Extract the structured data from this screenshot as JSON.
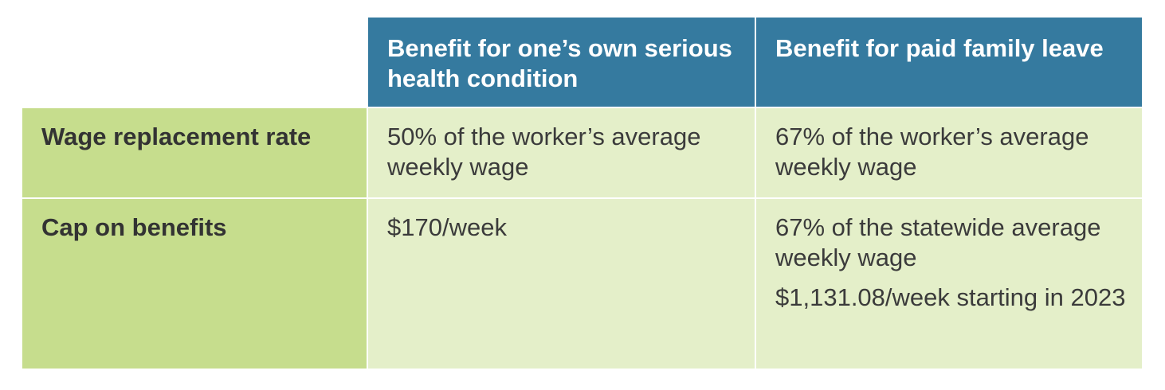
{
  "table": {
    "headers": [
      "",
      "Benefit for one’s own serious health condition",
      "Benefit for paid family leave"
    ],
    "rows": [
      {
        "label": "Wage replacement rate",
        "own_health": [
          "50% of the worker’s average weekly wage"
        ],
        "family_leave": [
          "67% of the worker’s average weekly wage"
        ]
      },
      {
        "label": "Cap on benefits",
        "own_health": [
          "$170/week"
        ],
        "family_leave": [
          "67% of the statewide average weekly wage",
          "$1,131.08/week starting in 2023"
        ]
      }
    ]
  },
  "colors": {
    "header_bg": "#357a9f",
    "row_header_bg": "#c6dd8d",
    "data_bg": "#e4efc9",
    "border": "#ffffff"
  }
}
